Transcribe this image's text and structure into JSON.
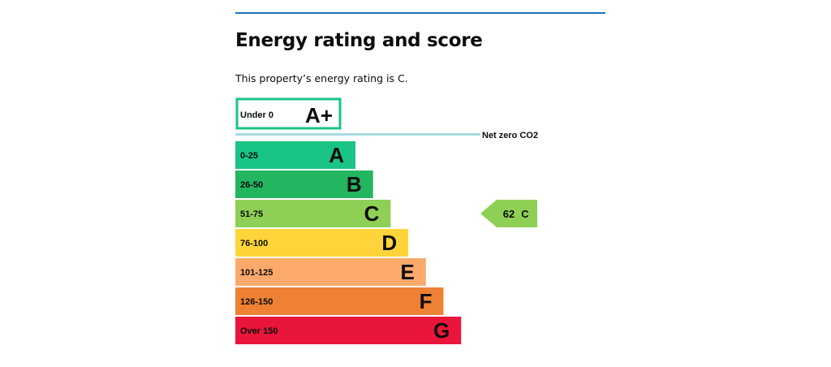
{
  "heading": "Energy rating and score",
  "summary": "This property’s energy rating is C.",
  "chart_data": {
    "type": "bar",
    "orientation": "horizontal",
    "top_band": {
      "range": "Under 0",
      "letter": "A+",
      "color": "#1bc288"
    },
    "net_zero_label": "Net zero CO2",
    "net_zero_color": "#a8dbe0",
    "bands": [
      {
        "range": "0-25",
        "letter": "A",
        "color": "#19c484"
      },
      {
        "range": "26-50",
        "letter": "B",
        "color": "#23b560"
      },
      {
        "range": "51-75",
        "letter": "C",
        "color": "#8ecf55"
      },
      {
        "range": "76-100",
        "letter": "D",
        "color": "#ffd43b"
      },
      {
        "range": "101-125",
        "letter": "E",
        "color": "#fcaa6b"
      },
      {
        "range": "126-150",
        "letter": "F",
        "color": "#ef8134"
      },
      {
        "range": "Over 150",
        "letter": "G",
        "color": "#e9153b"
      }
    ],
    "current": {
      "score": 62,
      "score_text": "62",
      "letter": "C",
      "band_index": 2,
      "color": "#8ecf55"
    }
  }
}
